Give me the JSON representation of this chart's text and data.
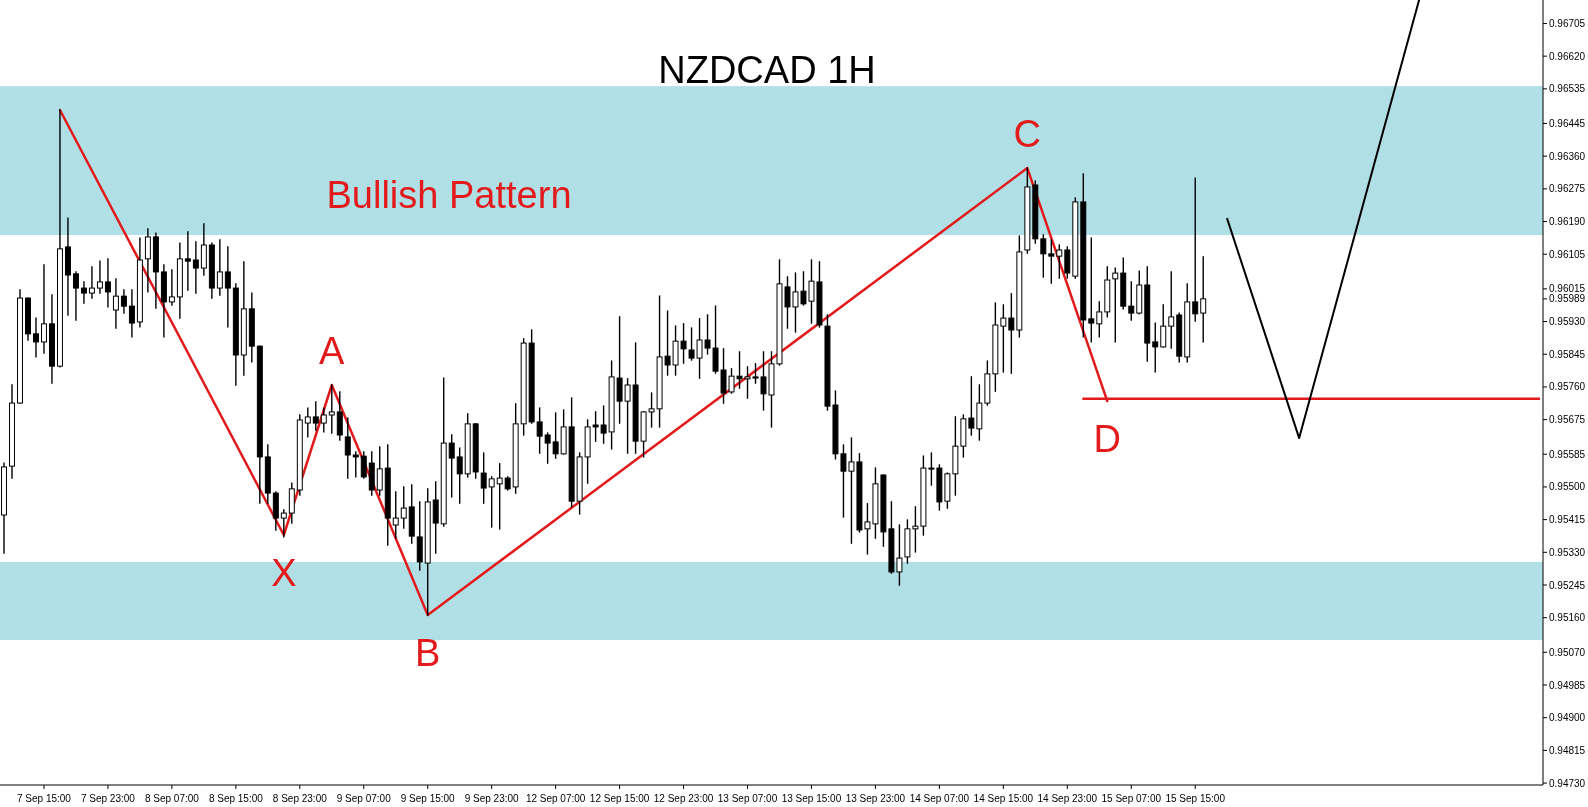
{
  "chart_data": {
    "type": "candlestick",
    "title": "NZDCAD 1H",
    "categories": [
      null,
      null,
      null,
      null,
      null,
      "7 Sep 15:00",
      null,
      null,
      null,
      null,
      null,
      null,
      null,
      "7 Sep 23:00",
      null,
      null,
      null,
      null,
      null,
      null,
      null,
      "8 Sep 07:00",
      null,
      null,
      null,
      null,
      null,
      null,
      null,
      "8 Sep 15:00",
      null,
      null,
      null,
      null,
      null,
      null,
      null,
      "8 Sep 23:00",
      null,
      null,
      null,
      null,
      null,
      null,
      null,
      "9 Sep 07:00",
      null,
      null,
      null,
      null,
      null,
      null,
      null,
      "9 Sep 15:00",
      null,
      null,
      null,
      null,
      null,
      null,
      null,
      "9 Sep 23:00",
      null,
      null,
      null,
      null,
      null,
      null,
      null,
      "12 Sep 07:00",
      null,
      null,
      null,
      null,
      null,
      null,
      null,
      "12 Sep 15:00",
      null,
      null,
      null,
      null,
      null,
      null,
      null,
      "12 Sep 23:00",
      null,
      null,
      null,
      null,
      null,
      null,
      null,
      "13 Sep 07:00",
      null,
      null,
      null,
      null,
      null,
      null,
      null,
      "13 Sep 15:00",
      null,
      null,
      null,
      null,
      null,
      null,
      null,
      "13 Sep 23:00",
      null,
      null,
      null,
      null,
      null,
      null,
      null,
      "14 Sep 07:00",
      null,
      null,
      null,
      null,
      null,
      null,
      null,
      "14 Sep 15:00",
      null,
      null,
      null,
      null,
      null,
      null,
      null,
      "14 Sep 23:00",
      null,
      null,
      null,
      null,
      null,
      null,
      null,
      "15 Sep 07:00",
      null,
      null,
      null,
      null,
      null,
      null,
      null,
      "15 Sep 15:00",
      null,
      null,
      null,
      null,
      null,
      null,
      null,
      null,
      null,
      null,
      null,
      null,
      null,
      null,
      null,
      null,
      null,
      null,
      null,
      null,
      null,
      null,
      null,
      null,
      null,
      null,
      null,
      null,
      null,
      null,
      null,
      null,
      null,
      null,
      null,
      null,
      null,
      null,
      null,
      null,
      null,
      null,
      null
    ],
    "ohlc": [
      [
        0.95427,
        0.95562,
        0.95328,
        0.95552
      ],
      [
        0.95554,
        0.95765,
        0.95523,
        0.95718
      ],
      [
        0.95718,
        0.96012,
        0.95718,
        0.95991
      ],
      [
        0.95991,
        0.95991,
        0.95882,
        0.95898
      ],
      [
        0.95898,
        0.95939,
        0.95838,
        0.95877
      ],
      [
        0.95877,
        0.96077,
        0.95848,
        0.95924
      ],
      [
        0.95924,
        0.95999,
        0.9577,
        0.95814
      ],
      [
        0.95814,
        0.9648,
        0.95812,
        0.96119
      ],
      [
        0.96124,
        0.96199,
        0.95947,
        0.96051
      ],
      [
        0.96054,
        0.96059,
        0.95934,
        0.96017
      ],
      [
        0.96017,
        0.96033,
        0.95978,
        0.96004
      ],
      [
        0.96004,
        0.96072,
        0.95991,
        0.96017
      ],
      [
        0.96017,
        0.96087,
        0.96004,
        0.96033
      ],
      [
        0.96033,
        0.96093,
        0.95968,
        0.96007
      ],
      [
        0.9596,
        0.96041,
        0.95913,
        0.95996
      ],
      [
        0.95996,
        0.96012,
        0.95952,
        0.9597
      ],
      [
        0.9597,
        0.96012,
        0.9589,
        0.95926
      ],
      [
        0.95929,
        0.96147,
        0.95916,
        0.9609
      ],
      [
        0.96093,
        0.96171,
        0.96007,
        0.9615
      ],
      [
        0.9615,
        0.9616,
        0.95965,
        0.96059
      ],
      [
        0.96059,
        0.96077,
        0.9589,
        0.95981
      ],
      [
        0.95981,
        0.96064,
        0.95973,
        0.95994
      ],
      [
        0.95994,
        0.96134,
        0.95939,
        0.96093
      ],
      [
        0.96093,
        0.96163,
        0.96012,
        0.96087
      ],
      [
        0.9609,
        0.96137,
        0.96004,
        0.96069
      ],
      [
        0.96069,
        0.96184,
        0.96051,
        0.96129
      ],
      [
        0.96129,
        0.96134,
        0.95991,
        0.96017
      ],
      [
        0.96017,
        0.96142,
        0.95999,
        0.96059
      ],
      [
        0.96059,
        0.96124,
        0.95916,
        0.96017
      ],
      [
        0.96017,
        0.96028,
        0.95765,
        0.95843
      ],
      [
        0.95843,
        0.96085,
        0.95791,
        0.95963
      ],
      [
        0.95963,
        0.96004,
        0.95825,
        0.95866
      ],
      [
        0.95866,
        0.95866,
        0.95458,
        0.95578
      ],
      [
        0.95578,
        0.95609,
        0.95458,
        0.95484
      ],
      [
        0.95484,
        0.95487,
        0.95388,
        0.95419
      ],
      [
        0.95419,
        0.9544,
        0.9537,
        0.95432
      ],
      [
        0.95432,
        0.9551,
        0.95406,
        0.95495
      ],
      [
        0.95492,
        0.95687,
        0.95479,
        0.95674
      ],
      [
        0.95666,
        0.95705,
        0.9563,
        0.95682
      ],
      [
        0.95682,
        0.95721,
        0.95648,
        0.95666
      ],
      [
        0.95666,
        0.95705,
        0.95643,
        0.95687
      ],
      [
        0.95687,
        0.95765,
        0.9564,
        0.95695
      ],
      [
        0.95695,
        0.95747,
        0.95622,
        0.95635
      ],
      [
        0.9563,
        0.95679,
        0.95523,
        0.95583
      ],
      [
        0.95583,
        0.95591,
        0.95526,
        0.95578
      ],
      [
        0.9558,
        0.95591,
        0.95523,
        0.95526
      ],
      [
        0.95562,
        0.95591,
        0.95479,
        0.95492
      ],
      [
        0.95492,
        0.95604,
        0.95479,
        0.95547
      ],
      [
        0.95549,
        0.95609,
        0.95349,
        0.95419
      ],
      [
        0.95401,
        0.95487,
        0.95367,
        0.95419
      ],
      [
        0.95419,
        0.955,
        0.95393,
        0.95445
      ],
      [
        0.95448,
        0.95505,
        0.95354,
        0.95372
      ],
      [
        0.9537,
        0.95461,
        0.95284,
        0.95305
      ],
      [
        0.95302,
        0.95495,
        0.95167,
        0.95461
      ],
      [
        0.95466,
        0.95513,
        0.95328,
        0.95406
      ],
      [
        0.95404,
        0.95783,
        0.95398,
        0.95614
      ],
      [
        0.95614,
        0.95635,
        0.95474,
        0.95575
      ],
      [
        0.95578,
        0.95601,
        0.95458,
        0.95534
      ],
      [
        0.95534,
        0.9569,
        0.95526,
        0.95664
      ],
      [
        0.95664,
        0.95664,
        0.95523,
        0.95539
      ],
      [
        0.95536,
        0.95588,
        0.95458,
        0.95497
      ],
      [
        0.955,
        0.95526,
        0.95396,
        0.95521
      ],
      [
        0.95508,
        0.9556,
        0.95391,
        0.95523
      ],
      [
        0.95523,
        0.95526,
        0.95492,
        0.95495
      ],
      [
        0.955,
        0.95716,
        0.95484,
        0.95664
      ],
      [
        0.95664,
        0.95885,
        0.95635,
        0.95874
      ],
      [
        0.95874,
        0.95908,
        0.95666,
        0.95669
      ],
      [
        0.95669,
        0.95705,
        0.95588,
        0.95632
      ],
      [
        0.95635,
        0.9564,
        0.95562,
        0.95614
      ],
      [
        0.95617,
        0.95692,
        0.95575,
        0.95586
      ],
      [
        0.95586,
        0.957,
        0.95586,
        0.95656
      ],
      [
        0.95656,
        0.95731,
        0.95448,
        0.95463
      ],
      [
        0.95463,
        0.95588,
        0.9543,
        0.95578
      ],
      [
        0.95578,
        0.95674,
        0.9551,
        0.95656
      ],
      [
        0.95661,
        0.95695,
        0.95619,
        0.95656
      ],
      [
        0.95661,
        0.9571,
        0.95614,
        0.9564
      ],
      [
        0.95643,
        0.95827,
        0.95599,
        0.95786
      ],
      [
        0.95783,
        0.95942,
        0.95666,
        0.95723
      ],
      [
        0.95723,
        0.95781,
        0.95588,
        0.95765
      ],
      [
        0.95765,
        0.95874,
        0.95588,
        0.95619
      ],
      [
        0.95619,
        0.95695,
        0.95578,
        0.95695
      ],
      [
        0.95695,
        0.95744,
        0.95656,
        0.95703
      ],
      [
        0.95703,
        0.95996,
        0.95656,
        0.95838
      ],
      [
        0.9584,
        0.95957,
        0.95791,
        0.95817
      ],
      [
        0.95817,
        0.95918,
        0.95791,
        0.95879
      ],
      [
        0.95879,
        0.95924,
        0.95822,
        0.95859
      ],
      [
        0.95856,
        0.95913,
        0.9583,
        0.95835
      ],
      [
        0.95835,
        0.95937,
        0.95783,
        0.95882
      ],
      [
        0.95882,
        0.95947,
        0.95846,
        0.95861
      ],
      [
        0.95861,
        0.9597,
        0.95796,
        0.95801
      ],
      [
        0.95804,
        0.95859,
        0.95718,
        0.95744
      ],
      [
        0.95747,
        0.95807,
        0.95744,
        0.95788
      ],
      [
        0.95788,
        0.95851,
        0.95757,
        0.95781
      ],
      [
        0.95781,
        0.95812,
        0.95731,
        0.95786
      ],
      [
        0.95786,
        0.9582,
        0.9577,
        0.95783
      ],
      [
        0.95786,
        0.95851,
        0.957,
        0.95742
      ],
      [
        0.95739,
        0.95851,
        0.95656,
        0.9582
      ],
      [
        0.9582,
        0.9609,
        0.95817,
        0.96028
      ],
      [
        0.9602,
        0.96046,
        0.95913,
        0.95968
      ],
      [
        0.95968,
        0.96056,
        0.95903,
        0.96007
      ],
      [
        0.96009,
        0.96059,
        0.95973,
        0.95976
      ],
      [
        0.95983,
        0.9609,
        0.95926,
        0.96035
      ],
      [
        0.96033,
        0.96085,
        0.95916,
        0.95921
      ],
      [
        0.95918,
        0.95947,
        0.957,
        0.9571
      ],
      [
        0.95713,
        0.95749,
        0.95573,
        0.95586
      ],
      [
        0.95586,
        0.95609,
        0.95422,
        0.95541
      ],
      [
        0.95541,
        0.95627,
        0.95354,
        0.95565
      ],
      [
        0.95565,
        0.95586,
        0.95383,
        0.95388
      ],
      [
        0.95391,
        0.95456,
        0.95326,
        0.95409
      ],
      [
        0.95404,
        0.95549,
        0.95367,
        0.95508
      ],
      [
        0.95531,
        0.95531,
        0.95346,
        0.95383
      ],
      [
        0.95391,
        0.95461,
        0.95276,
        0.95279
      ],
      [
        0.95279,
        0.95401,
        0.95245,
        0.95315
      ],
      [
        0.95318,
        0.95414,
        0.95302,
        0.95391
      ],
      [
        0.95391,
        0.95448,
        0.95331,
        0.95398
      ],
      [
        0.95398,
        0.9558,
        0.95375,
        0.95549
      ],
      [
        0.95549,
        0.95588,
        0.95505,
        0.95547
      ],
      [
        0.95549,
        0.95557,
        0.9544,
        0.95461
      ],
      [
        0.95463,
        0.95536,
        0.95445,
        0.95534
      ],
      [
        0.95534,
        0.95682,
        0.95479,
        0.95606
      ],
      [
        0.95606,
        0.95687,
        0.95578,
        0.95677
      ],
      [
        0.95679,
        0.95786,
        0.95635,
        0.95653
      ],
      [
        0.95651,
        0.95765,
        0.95622,
        0.95718
      ],
      [
        0.95718,
        0.95827,
        0.95713,
        0.95794
      ],
      [
        0.95794,
        0.95978,
        0.95749,
        0.95921
      ],
      [
        0.95918,
        0.95973,
        0.95799,
        0.95939
      ],
      [
        0.95939,
        0.96002,
        0.95796,
        0.95908
      ],
      [
        0.95908,
        0.96152,
        0.9589,
        0.96111
      ],
      [
        0.96116,
        0.96329,
        0.96108,
        0.9628
      ],
      [
        0.96285,
        0.96295,
        0.96134,
        0.96145
      ],
      [
        0.96145,
        0.96155,
        0.96046,
        0.96106
      ],
      [
        0.96106,
        0.96142,
        0.9603,
        0.961
      ],
      [
        0.961,
        0.96129,
        0.96043,
        0.96116
      ],
      [
        0.96116,
        0.96124,
        0.96043,
        0.96056
      ],
      [
        0.96048,
        0.96251,
        0.96043,
        0.96241
      ],
      [
        0.96241,
        0.96314,
        0.9589,
        0.95934
      ],
      [
        0.95937,
        0.96147,
        0.95877,
        0.95926
      ],
      [
        0.95924,
        0.95981,
        0.9589,
        0.95955
      ],
      [
        0.95955,
        0.96072,
        0.95942,
        0.96038
      ],
      [
        0.96041,
        0.96069,
        0.95877,
        0.96056
      ],
      [
        0.96056,
        0.96095,
        0.95963,
        0.9597
      ],
      [
        0.9597,
        0.96033,
        0.95934,
        0.95952
      ],
      [
        0.95952,
        0.96061,
        0.9595,
        0.96025
      ],
      [
        0.96025,
        0.96072,
        0.95827,
        0.95874
      ],
      [
        0.95877,
        0.95926,
        0.95799,
        0.95864
      ],
      [
        0.95864,
        0.95973,
        0.95864,
        0.95918
      ],
      [
        0.95918,
        0.96059,
        0.95861,
        0.95942
      ],
      [
        0.95947,
        0.95952,
        0.95825,
        0.9584
      ],
      [
        0.95838,
        0.96028,
        0.95825,
        0.95981
      ],
      [
        0.95981,
        0.96303,
        0.95931,
        0.9595
      ],
      [
        0.95952,
        0.96098,
        0.95877,
        0.95989
      ],
      null,
      null,
      null,
      null,
      null,
      null,
      null,
      null,
      null,
      null,
      null,
      null,
      null,
      null,
      null,
      null,
      null,
      null,
      null,
      null,
      null,
      null,
      null,
      null,
      null,
      null,
      null,
      null,
      null,
      null,
      null,
      null,
      null,
      null,
      null,
      null,
      null,
      null,
      null,
      null,
      null,
      null
    ],
    "series": [
      {
        "type": "line",
        "color": "#e31a1c",
        "values": [
          null,
          null,
          null,
          null,
          null,
          null,
          null,
          0.9648,
          null,
          null,
          null,
          null,
          null,
          null,
          null,
          null,
          null,
          null,
          null,
          null,
          null,
          null,
          null,
          null,
          null,
          null,
          null,
          null,
          null,
          null,
          null,
          null,
          null,
          null,
          null,
          0.95375,
          null,
          null,
          null,
          null,
          null,
          0.95765,
          null,
          null,
          null,
          null,
          null,
          null,
          null,
          null,
          null,
          null,
          null,
          0.95167,
          null,
          null,
          null,
          null,
          null,
          null,
          null,
          null,
          null,
          null,
          null,
          null,
          null,
          null,
          null,
          null,
          null,
          null,
          null,
          null,
          null,
          null,
          null,
          null,
          null,
          null,
          null,
          null,
          null,
          null,
          null,
          null,
          null,
          null,
          null,
          null,
          null,
          null,
          null,
          null,
          null,
          null,
          null,
          null,
          null,
          null,
          null,
          null,
          null,
          null,
          null,
          null,
          null,
          null,
          null,
          null,
          null,
          null,
          null,
          null,
          null,
          null,
          null,
          null,
          null,
          null,
          null,
          null,
          null,
          null,
          null,
          null,
          null,
          null,
          0.96329,
          null,
          null,
          null,
          null,
          null,
          null,
          null,
          null,
          null,
          0.95723,
          null,
          null,
          null,
          null,
          null,
          null,
          null,
          null,
          null,
          null,
          null,
          null,
          null,
          null,
          null,
          null,
          null,
          null,
          null,
          null,
          null,
          null,
          null,
          null,
          null,
          null,
          null,
          null,
          null,
          null,
          null,
          null,
          null,
          null,
          null,
          null,
          null,
          null,
          null,
          null,
          null,
          null,
          null,
          null,
          null,
          null,
          null,
          null,
          null,
          null,
          null,
          null,
          null,
          null
        ],
        "value_labels": [
          null,
          null,
          null,
          null,
          null,
          null,
          null,
          null,
          null,
          null,
          null,
          null,
          null,
          null,
          null,
          null,
          null,
          null,
          null,
          null,
          null,
          null,
          null,
          null,
          null,
          null,
          null,
          null,
          null,
          null,
          null,
          null,
          null,
          null,
          null,
          "X",
          null,
          null,
          null,
          null,
          null,
          "A",
          null,
          null,
          null,
          null,
          null,
          null,
          null,
          null,
          null,
          null,
          null,
          "B",
          null,
          null,
          null,
          null,
          null,
          null,
          null,
          null,
          null,
          null,
          null,
          null,
          null,
          null,
          null,
          null,
          null,
          null,
          null,
          null,
          null,
          null,
          null,
          null,
          null,
          null,
          null,
          null,
          null,
          null,
          null,
          null,
          null,
          null,
          null,
          null,
          null,
          null,
          null,
          null,
          null,
          null,
          null,
          null,
          null,
          null,
          null,
          null,
          null,
          null,
          null,
          null,
          null,
          null,
          null,
          null,
          null,
          null,
          null,
          null,
          null,
          null,
          null,
          null,
          null,
          null,
          null,
          null,
          null,
          null,
          null,
          null,
          null,
          null,
          "C",
          null,
          null,
          null,
          null,
          null,
          null,
          null,
          null,
          null,
          "D",
          null,
          null,
          null,
          null,
          null,
          null,
          null,
          null,
          null,
          null,
          null,
          null,
          null,
          null,
          null,
          null,
          null,
          null,
          null,
          null,
          null,
          null,
          null,
          null,
          null,
          null,
          null,
          null,
          null,
          null,
          null,
          null,
          null,
          null,
          null,
          null,
          null,
          null,
          null,
          null,
          null,
          null,
          null,
          null,
          null,
          null,
          null,
          null,
          null,
          null,
          null,
          null,
          null,
          null
        ]
      },
      {
        "type": "line",
        "color": "#e31a1c",
        "values": [
          null,
          null,
          null,
          null,
          null,
          null,
          null,
          null,
          null,
          null,
          null,
          null,
          null,
          null,
          null,
          null,
          null,
          null,
          null,
          null,
          null,
          null,
          null,
          null,
          null,
          null,
          null,
          null,
          null,
          null,
          null,
          null,
          null,
          null,
          null,
          null,
          null,
          null,
          null,
          null,
          null,
          null,
          null,
          null,
          null,
          null,
          null,
          null,
          null,
          null,
          null,
          null,
          null,
          null,
          null,
          null,
          null,
          null,
          null,
          null,
          null,
          null,
          null,
          null,
          null,
          null,
          null,
          null,
          null,
          null,
          null,
          null,
          null,
          null,
          null,
          null,
          null,
          null,
          null,
          null,
          null,
          null,
          null,
          null,
          null,
          null,
          null,
          null,
          null,
          null,
          null,
          null,
          null,
          null,
          null,
          null,
          null,
          null,
          null,
          null,
          null,
          null,
          null,
          null,
          null,
          null,
          null,
          null,
          null,
          null,
          null,
          null,
          null,
          null,
          null,
          null,
          null,
          null,
          null,
          null,
          null,
          null,
          null,
          null,
          null,
          null,
          null,
          null,
          null,
          null,
          null,
          null,
          null,
          null,
          null,
          0.95729,
          0.95729,
          0.95729,
          0.95729,
          0.95729,
          0.95729,
          0.95729,
          0.95729,
          0.95729,
          0.95729,
          0.95729,
          0.95729,
          0.95729,
          0.95729,
          0.95729,
          0.95729,
          0.95729,
          0.95729,
          0.95729,
          0.95729,
          0.95729,
          0.95729,
          0.95729,
          0.95729,
          0.95729,
          0.95729,
          0.95729,
          0.95729,
          0.95729,
          0.95729,
          0.95729,
          0.95729,
          0.95729,
          0.95729,
          0.95729,
          0.95729,
          0.95729,
          0.95729,
          0.95729,
          0.95729,
          0.95729,
          0.95729,
          0.95729,
          0.95729,
          0.95729,
          0.95729,
          0.95729,
          0.95729,
          0.95729,
          0.95729,
          0.95729,
          0.95729,
          0.95729,
          0.95729,
          0.95729,
          0.95729,
          0.95729,
          0.95729
        ]
      },
      {
        "type": "line",
        "color": "#000000",
        "values": [
          null,
          null,
          null,
          null,
          null,
          null,
          null,
          null,
          null,
          null,
          null,
          null,
          null,
          null,
          null,
          null,
          null,
          null,
          null,
          null,
          null,
          null,
          null,
          null,
          null,
          null,
          null,
          null,
          null,
          null,
          null,
          null,
          null,
          null,
          null,
          null,
          null,
          null,
          null,
          null,
          null,
          null,
          null,
          null,
          null,
          null,
          null,
          null,
          null,
          null,
          null,
          null,
          null,
          null,
          null,
          null,
          null,
          null,
          null,
          null,
          null,
          null,
          null,
          null,
          null,
          null,
          null,
          null,
          null,
          null,
          null,
          null,
          null,
          null,
          null,
          null,
          null,
          null,
          null,
          null,
          null,
          null,
          null,
          null,
          null,
          null,
          null,
          null,
          null,
          null,
          null,
          null,
          null,
          null,
          null,
          null,
          null,
          null,
          null,
          null,
          null,
          null,
          null,
          null,
          null,
          null,
          null,
          null,
          null,
          null,
          null,
          null,
          null,
          null,
          null,
          null,
          null,
          null,
          null,
          null,
          null,
          null,
          null,
          null,
          null,
          null,
          null,
          null,
          null,
          null,
          null,
          null,
          null,
          null,
          null,
          null,
          null,
          null,
          null,
          null,
          null,
          null,
          null,
          null,
          null,
          null,
          null,
          null,
          null,
          null,
          null,
          null,
          null,
          0.96197,
          null,
          null,
          null,
          null,
          null,
          null,
          null,
          null,
          0.95627,
          null,
          null,
          null,
          null,
          null,
          null,
          null,
          null,
          null,
          null,
          null,
          null,
          null,
          null,
          0.96766,
          null,
          null,
          null,
          null,
          null,
          null,
          null,
          null,
          null,
          null,
          null,
          null,
          null,
          null,
          null
        ]
      }
    ],
    "bands": [
      {
        "axis": "y",
        "from": 0.95102,
        "to": 0.95305,
        "color": "#b0dfe5"
      },
      {
        "axis": "y",
        "from": 0.96155,
        "to": 0.96542,
        "color": "#b0dfe5"
      }
    ],
    "annotations": [
      "Bullish Pattern"
    ],
    "ylim": [
      0.94725,
      0.96766
    ],
    "yticks": [
      0.96705,
      {
        "value": 0.9662,
        "label": "0.96620"
      },
      0.96535,
      0.96445,
      {
        "value": 0.9636,
        "label": "0.96360"
      },
      0.96275,
      {
        "value": 0.9619,
        "label": "0.96190"
      },
      0.96105,
      0.96015,
      0.95989,
      {
        "value": 0.9593,
        "label": "0.95930"
      },
      0.95845,
      {
        "value": 0.9576,
        "label": "0.95760"
      },
      0.95675,
      0.95585,
      {
        "value": 0.955,
        "label": "0.95500"
      },
      0.95415,
      {
        "value": 0.9533,
        "label": "0.95330"
      },
      0.95245,
      {
        "value": 0.9516,
        "label": "0.95160"
      },
      {
        "value": 0.9507,
        "label": "0.95070"
      },
      0.94985,
      {
        "value": 0.949,
        "label": "0.94900"
      },
      0.94815,
      {
        "value": 0.9473,
        "label": "0.94730"
      }
    ]
  }
}
